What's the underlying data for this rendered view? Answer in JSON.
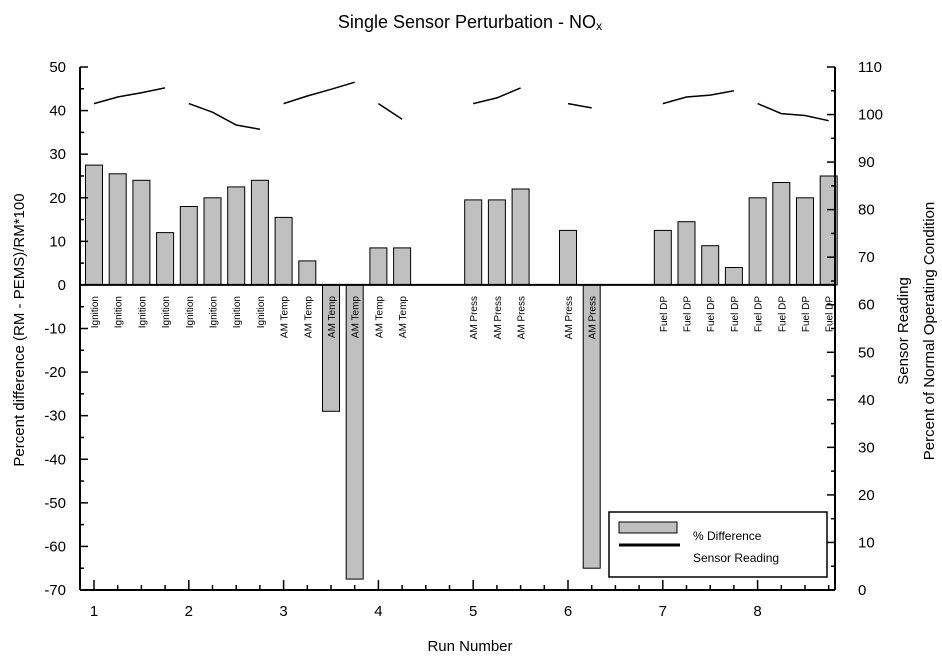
{
  "chart_data": {
    "type": "bar",
    "title": "Single Sensor Perturbation - NO",
    "title_subscript": "x",
    "xlabel": "Run Number",
    "ylabel_left": "Percent difference (RM - PEMS)/RM*100",
    "ylabel_right_line1": "Sensor Reading",
    "ylabel_right_line2": "Percent of Normal Operating Condition",
    "x_ticks": [
      1,
      2,
      3,
      4,
      5,
      6,
      7,
      8
    ],
    "xlim": [
      0.9,
      8.8
    ],
    "left_ticks": [
      50,
      40,
      30,
      20,
      10,
      0,
      -10,
      -20,
      -30,
      -40,
      -50,
      -60,
      -70
    ],
    "left_ylim": [
      -70,
      50
    ],
    "right_ticks": [
      110,
      100,
      90,
      80,
      70,
      60,
      50,
      40,
      30,
      20,
      10,
      0
    ],
    "right_ylim": [
      0,
      110
    ],
    "bars": [
      {
        "x": 1.0,
        "value": 27.5,
        "label": "Ignition"
      },
      {
        "x": 1.25,
        "value": 25.5,
        "label": "Ignition"
      },
      {
        "x": 1.5,
        "value": 24.0,
        "label": "Ignition"
      },
      {
        "x": 1.75,
        "value": 12.0,
        "label": "Ignition"
      },
      {
        "x": 2.0,
        "value": 18.0,
        "label": "Ignition"
      },
      {
        "x": 2.25,
        "value": 20.0,
        "label": "Ignition"
      },
      {
        "x": 2.5,
        "value": 22.5,
        "label": "Ignition"
      },
      {
        "x": 2.75,
        "value": 24.0,
        "label": "Ignition"
      },
      {
        "x": 3.0,
        "value": 15.5,
        "label": "AM Temp"
      },
      {
        "x": 3.25,
        "value": 5.5,
        "label": "AM Temp"
      },
      {
        "x": 3.5,
        "value": -29.0,
        "label": "AM Temp"
      },
      {
        "x": 3.75,
        "value": -67.5,
        "label": "AM Temp"
      },
      {
        "x": 4.0,
        "value": 8.5,
        "label": "AM Temp"
      },
      {
        "x": 4.25,
        "value": 8.5,
        "label": "AM Temp"
      },
      {
        "x": 5.0,
        "value": 19.5,
        "label": "AM Press"
      },
      {
        "x": 5.25,
        "value": 19.5,
        "label": "AM Press"
      },
      {
        "x": 5.5,
        "value": 22.0,
        "label": "AM Press"
      },
      {
        "x": 6.0,
        "value": 12.5,
        "label": "AM Press"
      },
      {
        "x": 6.25,
        "value": -65.0,
        "label": "AM Press"
      },
      {
        "x": 7.0,
        "value": 12.5,
        "label": "Fuel DP"
      },
      {
        "x": 7.25,
        "value": 14.5,
        "label": "Fuel DP"
      },
      {
        "x": 7.5,
        "value": 9.0,
        "label": "Fuel DP"
      },
      {
        "x": 7.75,
        "value": 4.0,
        "label": "Fuel DP"
      },
      {
        "x": 8.0,
        "value": 20.0,
        "label": "Fuel DP"
      },
      {
        "x": 8.25,
        "value": 23.5,
        "label": "Fuel DP"
      },
      {
        "x": 8.5,
        "value": 20.0,
        "label": "Fuel DP"
      },
      {
        "x": 8.75,
        "value": 25.0,
        "label": "Fuel DP"
      }
    ],
    "sensor_segments": [
      [
        [
          1.0,
          102.3
        ],
        [
          1.25,
          103.7
        ],
        [
          1.5,
          104.6
        ],
        [
          1.75,
          105.6
        ]
      ],
      [
        [
          2.0,
          102.3
        ],
        [
          2.25,
          100.5
        ],
        [
          2.5,
          97.8
        ],
        [
          2.75,
          96.9
        ]
      ],
      [
        [
          3.0,
          102.3
        ],
        [
          3.25,
          103.9
        ],
        [
          3.5,
          105.3
        ],
        [
          3.75,
          106.8
        ]
      ],
      [
        [
          4.0,
          102.3
        ],
        [
          4.25,
          99.0
        ]
      ],
      [
        [
          5.0,
          102.3
        ],
        [
          5.25,
          103.5
        ],
        [
          5.5,
          105.6
        ]
      ],
      [
        [
          6.0,
          102.3
        ],
        [
          6.25,
          101.4
        ]
      ],
      [
        [
          7.0,
          102.3
        ],
        [
          7.25,
          103.7
        ],
        [
          7.5,
          104.1
        ],
        [
          7.75,
          105.0
        ]
      ],
      [
        [
          8.0,
          102.3
        ],
        [
          8.25,
          100.2
        ],
        [
          8.5,
          99.8
        ],
        [
          8.75,
          98.7
        ]
      ]
    ],
    "legend": [
      {
        "name": "% Difference",
        "kind": "bar"
      },
      {
        "name": "Sensor Reading",
        "kind": "line"
      }
    ],
    "legend_position": "bottom-right",
    "grid": false
  }
}
